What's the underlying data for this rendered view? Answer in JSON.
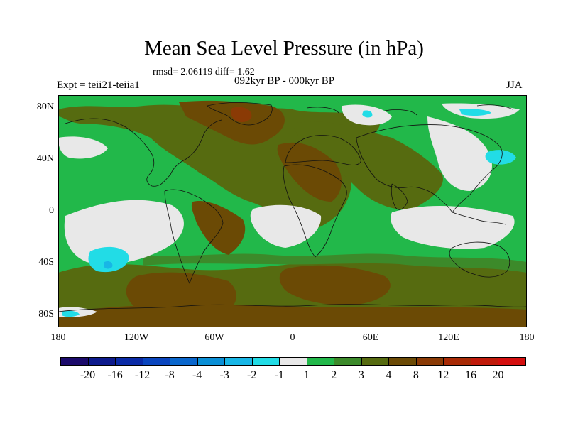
{
  "title": "Mean Sea Level Pressure (in hPa)",
  "stats": "rmsd= 2.06119 diff= 1.62",
  "left_label": "Expt = teii21-teiia1",
  "center_label": "092kyr BP - 000kyr BP",
  "right_label": "JJA",
  "lat_labels": [
    "80N",
    "40N",
    "0",
    "40S",
    "80S"
  ],
  "lon_labels": [
    "180",
    "120W",
    "60W",
    "0",
    "60E",
    "120E",
    "180"
  ],
  "colorbar": {
    "labels": [
      "-20",
      "-16",
      "-12",
      "-8",
      "-4",
      "-3",
      "-2",
      "-1",
      "1",
      "2",
      "3",
      "4",
      "8",
      "12",
      "16",
      "20"
    ],
    "colors": [
      "#1b0a6b",
      "#0d1a8c",
      "#0a2aa6",
      "#0a45be",
      "#0a66cc",
      "#0a8fd6",
      "#18b6e6",
      "#22dce6",
      "#e8e8e8",
      "#22b84a",
      "#3c8a2a",
      "#566b10",
      "#6b4a05",
      "#8a3a05",
      "#a82a05",
      "#c01a0a",
      "#d40e0e"
    ]
  },
  "map_colors": {
    "neutral": "#e8e8e8",
    "green": "#22b84a",
    "dark_green": "#3c8a2a",
    "olive": "#566b10",
    "brown": "#6b4a05",
    "rust": "#8a3a05",
    "cyan": "#22dce6",
    "blue": "#18b6e6",
    "coast": "#111111"
  }
}
